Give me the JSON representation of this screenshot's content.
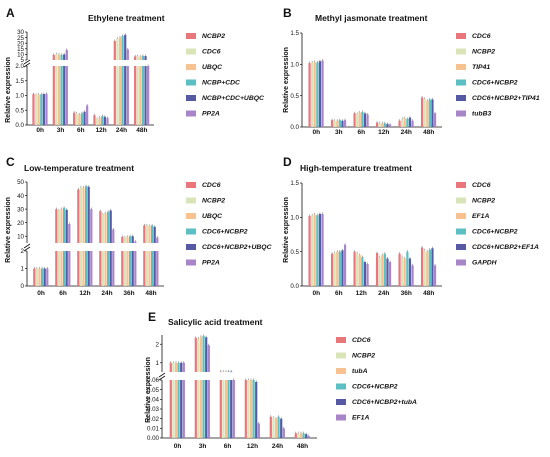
{
  "colors": [
    "#e8767b",
    "#d9e5b9",
    "#f7c28f",
    "#5bbfc3",
    "#565aa5",
    "#a884c8"
  ],
  "chart_data": [
    {
      "panel": "A",
      "type": "bar",
      "title": "Ethylene treatment",
      "ylabel": "Relative expression",
      "categories": [
        "0h",
        "3h",
        "6h",
        "12h",
        "24h",
        "48h"
      ],
      "axis_break": {
        "lower_ylim": [
          0,
          2
        ],
        "upper_ylim": [
          5,
          30
        ],
        "lower_ticks": [
          "0.0",
          "0.5",
          "1.0",
          "1.5",
          "2.0"
        ],
        "upper_ticks": [
          "5",
          "10",
          "15",
          "20",
          "25",
          "30"
        ]
      },
      "legend": {
        "position": "right"
      },
      "series": [
        {
          "name": "NCBP2",
          "values": [
            1.05,
            9.5,
            0.42,
            0.33,
            22.0,
            8.2
          ]
        },
        {
          "name": "CDC6",
          "values": [
            1.02,
            10.2,
            0.4,
            0.2,
            24.0,
            8.4
          ]
        },
        {
          "name": "UBQC",
          "values": [
            1.03,
            9.8,
            0.36,
            0.25,
            25.0,
            8.0
          ]
        },
        {
          "name": "NCBP+CDC",
          "values": [
            1.04,
            9.6,
            0.4,
            0.3,
            26.5,
            8.6
          ]
        },
        {
          "name": "NCBP+CDC+UBQC",
          "values": [
            1.05,
            10.0,
            0.45,
            0.28,
            27.5,
            8.5
          ]
        },
        {
          "name": "PP2A",
          "values": [
            1.06,
            14.0,
            0.66,
            0.24,
            14.5,
            2.6
          ]
        }
      ]
    },
    {
      "panel": "B",
      "type": "bar",
      "title": "Methyl jasmonate treatment",
      "ylabel": "Relative expression",
      "categories": [
        "0h",
        "3h",
        "6h",
        "12h",
        "24h",
        "48h"
      ],
      "ylim": [
        0,
        1.5
      ],
      "ticks": [
        "0.0",
        "0.5",
        "1.0",
        "1.5"
      ],
      "legend": {
        "position": "right"
      },
      "series": [
        {
          "name": "CDC6",
          "values": [
            1.02,
            0.11,
            0.22,
            0.07,
            0.1,
            0.47
          ]
        },
        {
          "name": "NCBP2",
          "values": [
            1.03,
            0.1,
            0.21,
            0.06,
            0.13,
            0.45
          ]
        },
        {
          "name": "TIP41",
          "values": [
            1.04,
            0.1,
            0.23,
            0.06,
            0.14,
            0.42
          ]
        },
        {
          "name": "CDC6+NCBP2",
          "values": [
            1.03,
            0.11,
            0.24,
            0.06,
            0.13,
            0.44
          ]
        },
        {
          "name": "CDC6+NCBP2+TIP41",
          "values": [
            1.05,
            0.1,
            0.22,
            0.05,
            0.15,
            0.44
          ]
        },
        {
          "name": "tubB3",
          "values": [
            1.06,
            0.11,
            0.2,
            0.04,
            0.1,
            0.22
          ]
        }
      ]
    },
    {
      "panel": "C",
      "type": "bar",
      "title": "Low-temperature treatment",
      "ylabel": "Relative expression",
      "categories": [
        "0h",
        "6h",
        "12h",
        "24h",
        "36h",
        "48h"
      ],
      "axis_break": {
        "lower_ylim": [
          0,
          2
        ],
        "upper_ylim": [
          5,
          50
        ],
        "lower_ticks": [
          "0",
          "1",
          "2"
        ],
        "upper_ticks": [
          "10",
          "20",
          "30",
          "40",
          "50"
        ]
      },
      "legend": {
        "position": "right"
      },
      "series": [
        {
          "name": "CDC6",
          "values": [
            1.0,
            30.0,
            44.5,
            28.5,
            9.5,
            18.0
          ]
        },
        {
          "name": "NCBP2",
          "values": [
            1.0,
            29.0,
            46.0,
            26.0,
            9.0,
            18.0
          ]
        },
        {
          "name": "UBQC",
          "values": [
            1.0,
            30.0,
            46.0,
            27.0,
            9.5,
            17.5
          ]
        },
        {
          "name": "CDC6+NCBP2",
          "values": [
            1.0,
            31.0,
            47.0,
            28.0,
            10.0,
            18.0
          ]
        },
        {
          "name": "CDC6+NCBP2+UBQC",
          "values": [
            1.0,
            29.5,
            46.5,
            29.0,
            10.0,
            17.0
          ]
        },
        {
          "name": "PP2A",
          "values": [
            1.0,
            19.0,
            30.0,
            15.0,
            6.0,
            9.0
          ]
        }
      ]
    },
    {
      "panel": "D",
      "type": "bar",
      "title": "High-temperature treatment",
      "ylabel": "Relative expression",
      "categories": [
        "0h",
        "6h",
        "12h",
        "24h",
        "36h",
        "48h"
      ],
      "ylim": [
        0,
        1.5
      ],
      "ticks": [
        "0.0",
        "0.5",
        "1.0",
        "1.5"
      ],
      "legend": {
        "position": "right"
      },
      "series": [
        {
          "name": "CDC6",
          "values": [
            1.02,
            0.47,
            0.5,
            0.48,
            0.47,
            0.56
          ]
        },
        {
          "name": "NCBP2",
          "values": [
            1.03,
            0.48,
            0.48,
            0.42,
            0.42,
            0.52
          ]
        },
        {
          "name": "EF1A",
          "values": [
            1.04,
            0.5,
            0.45,
            0.45,
            0.4,
            0.5
          ]
        },
        {
          "name": "CDC6+NCBP2",
          "values": [
            1.03,
            0.5,
            0.42,
            0.47,
            0.5,
            0.53
          ]
        },
        {
          "name": "CDC6+NCBP2+EF1A",
          "values": [
            1.05,
            0.52,
            0.35,
            0.4,
            0.4,
            0.55
          ]
        },
        {
          "name": "GAPDH",
          "values": [
            1.05,
            0.6,
            0.32,
            0.35,
            0.3,
            0.3
          ]
        }
      ]
    },
    {
      "panel": "E",
      "type": "bar",
      "title": "Salicylic acid treatment",
      "ylabel": "Relative expression",
      "categories": [
        "0h",
        "3h",
        "6h",
        "12h",
        "24h",
        "48h"
      ],
      "axis_break": {
        "lower_ylim": [
          0,
          0.06
        ],
        "upper_ylim": [
          0.5,
          2.5
        ],
        "lower_ticks": [
          "0.00",
          "0.01",
          "0.02",
          "0.03",
          "0.04",
          "0.05",
          "0.06"
        ],
        "upper_ticks": [
          "1",
          "2"
        ]
      },
      "legend": {
        "position": "right"
      },
      "series": [
        {
          "name": "CDC6",
          "values": [
            1.0,
            2.35,
            0.52,
            0.062,
            0.022,
            0.005
          ]
        },
        {
          "name": "NCBP2",
          "values": [
            1.0,
            2.3,
            0.52,
            0.061,
            0.021,
            0.005
          ]
        },
        {
          "name": "tubA",
          "values": [
            1.0,
            2.4,
            0.52,
            0.063,
            0.02,
            0.005
          ]
        },
        {
          "name": "CDC6+NCBP2",
          "values": [
            1.0,
            2.45,
            0.53,
            0.06,
            0.022,
            0.005
          ]
        },
        {
          "name": "CDC6+NCBP2+tubA",
          "values": [
            1.0,
            2.38,
            0.52,
            0.058,
            0.02,
            0.004
          ]
        },
        {
          "name": "EF1A",
          "values": [
            1.0,
            1.95,
            0.4,
            0.015,
            0.01,
            0.002
          ]
        }
      ]
    }
  ]
}
